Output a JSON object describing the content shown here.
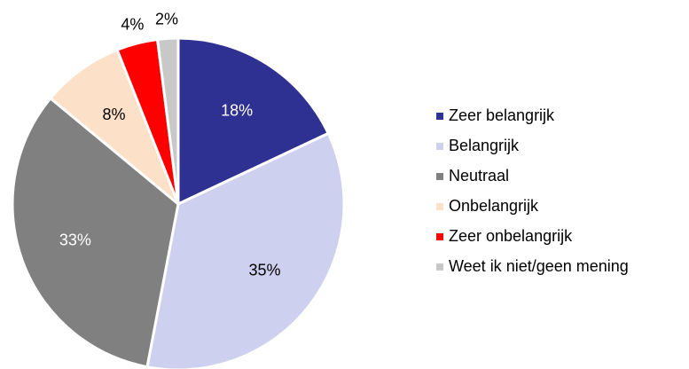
{
  "chart_data": {
    "type": "pie",
    "categories": [
      "Zeer belangrijk",
      "Belangrijk",
      "Neutraal",
      "Onbelangrijk",
      "Zeer onbelangrijk",
      "Weet ik niet/geen mening"
    ],
    "values": [
      18,
      35,
      33,
      8,
      4,
      2
    ],
    "value_labels": [
      "18%",
      "35%",
      "33%",
      "8%",
      "4%",
      "2%"
    ],
    "colors": [
      "#2e3192",
      "#cdd0ee",
      "#808080",
      "#fde0c8",
      "#ff0000",
      "#c8c8c8"
    ],
    "legend": "right"
  }
}
